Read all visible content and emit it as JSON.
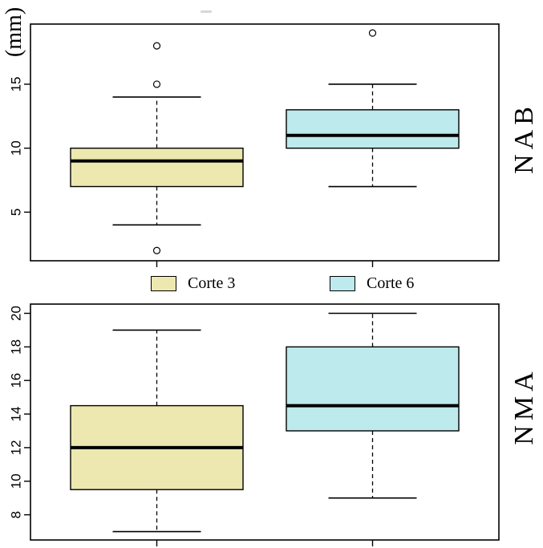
{
  "figure": {
    "unit_label": "(mm)",
    "background": "#ffffff",
    "line_color": "#000000",
    "legend": [
      {
        "label": "Corte 3",
        "color": "#ECE8B0"
      },
      {
        "label": "Corte 6",
        "color": "#BDEAEC"
      }
    ]
  },
  "chart_data": [
    {
      "type": "boxplot",
      "panel": "NAB",
      "ylabel": "(mm)",
      "yticks": [
        5,
        10,
        15
      ],
      "ylim": [
        1.2,
        19.7
      ],
      "grid": false,
      "legend_position": "below-panel",
      "groups": [
        {
          "name": "Corte 3",
          "color": "#ECE8B0",
          "whisker_low": 4,
          "q1": 7,
          "median": 9,
          "q3": 10,
          "whisker_high": 14,
          "outliers": [
            2,
            15,
            18
          ]
        },
        {
          "name": "Corte 6",
          "color": "#BDEAEC",
          "whisker_low": 7,
          "q1": 10,
          "median": 11,
          "q3": 13,
          "whisker_high": 15,
          "outliers": [
            19
          ]
        }
      ]
    },
    {
      "type": "boxplot",
      "panel": "NMA",
      "yticks": [
        8,
        10,
        12,
        14,
        16,
        18,
        20
      ],
      "ylim": [
        6.5,
        20.55
      ],
      "grid": false,
      "groups": [
        {
          "name": "Corte 3",
          "color": "#ECE8B0",
          "whisker_low": 7,
          "q1": 9.5,
          "median": 12,
          "q3": 14.5,
          "whisker_high": 19,
          "outliers": []
        },
        {
          "name": "Corte 6",
          "color": "#BDEAEC",
          "whisker_low": 9,
          "q1": 13,
          "median": 14.5,
          "q3": 18,
          "whisker_high": 20,
          "outliers": []
        }
      ]
    }
  ]
}
